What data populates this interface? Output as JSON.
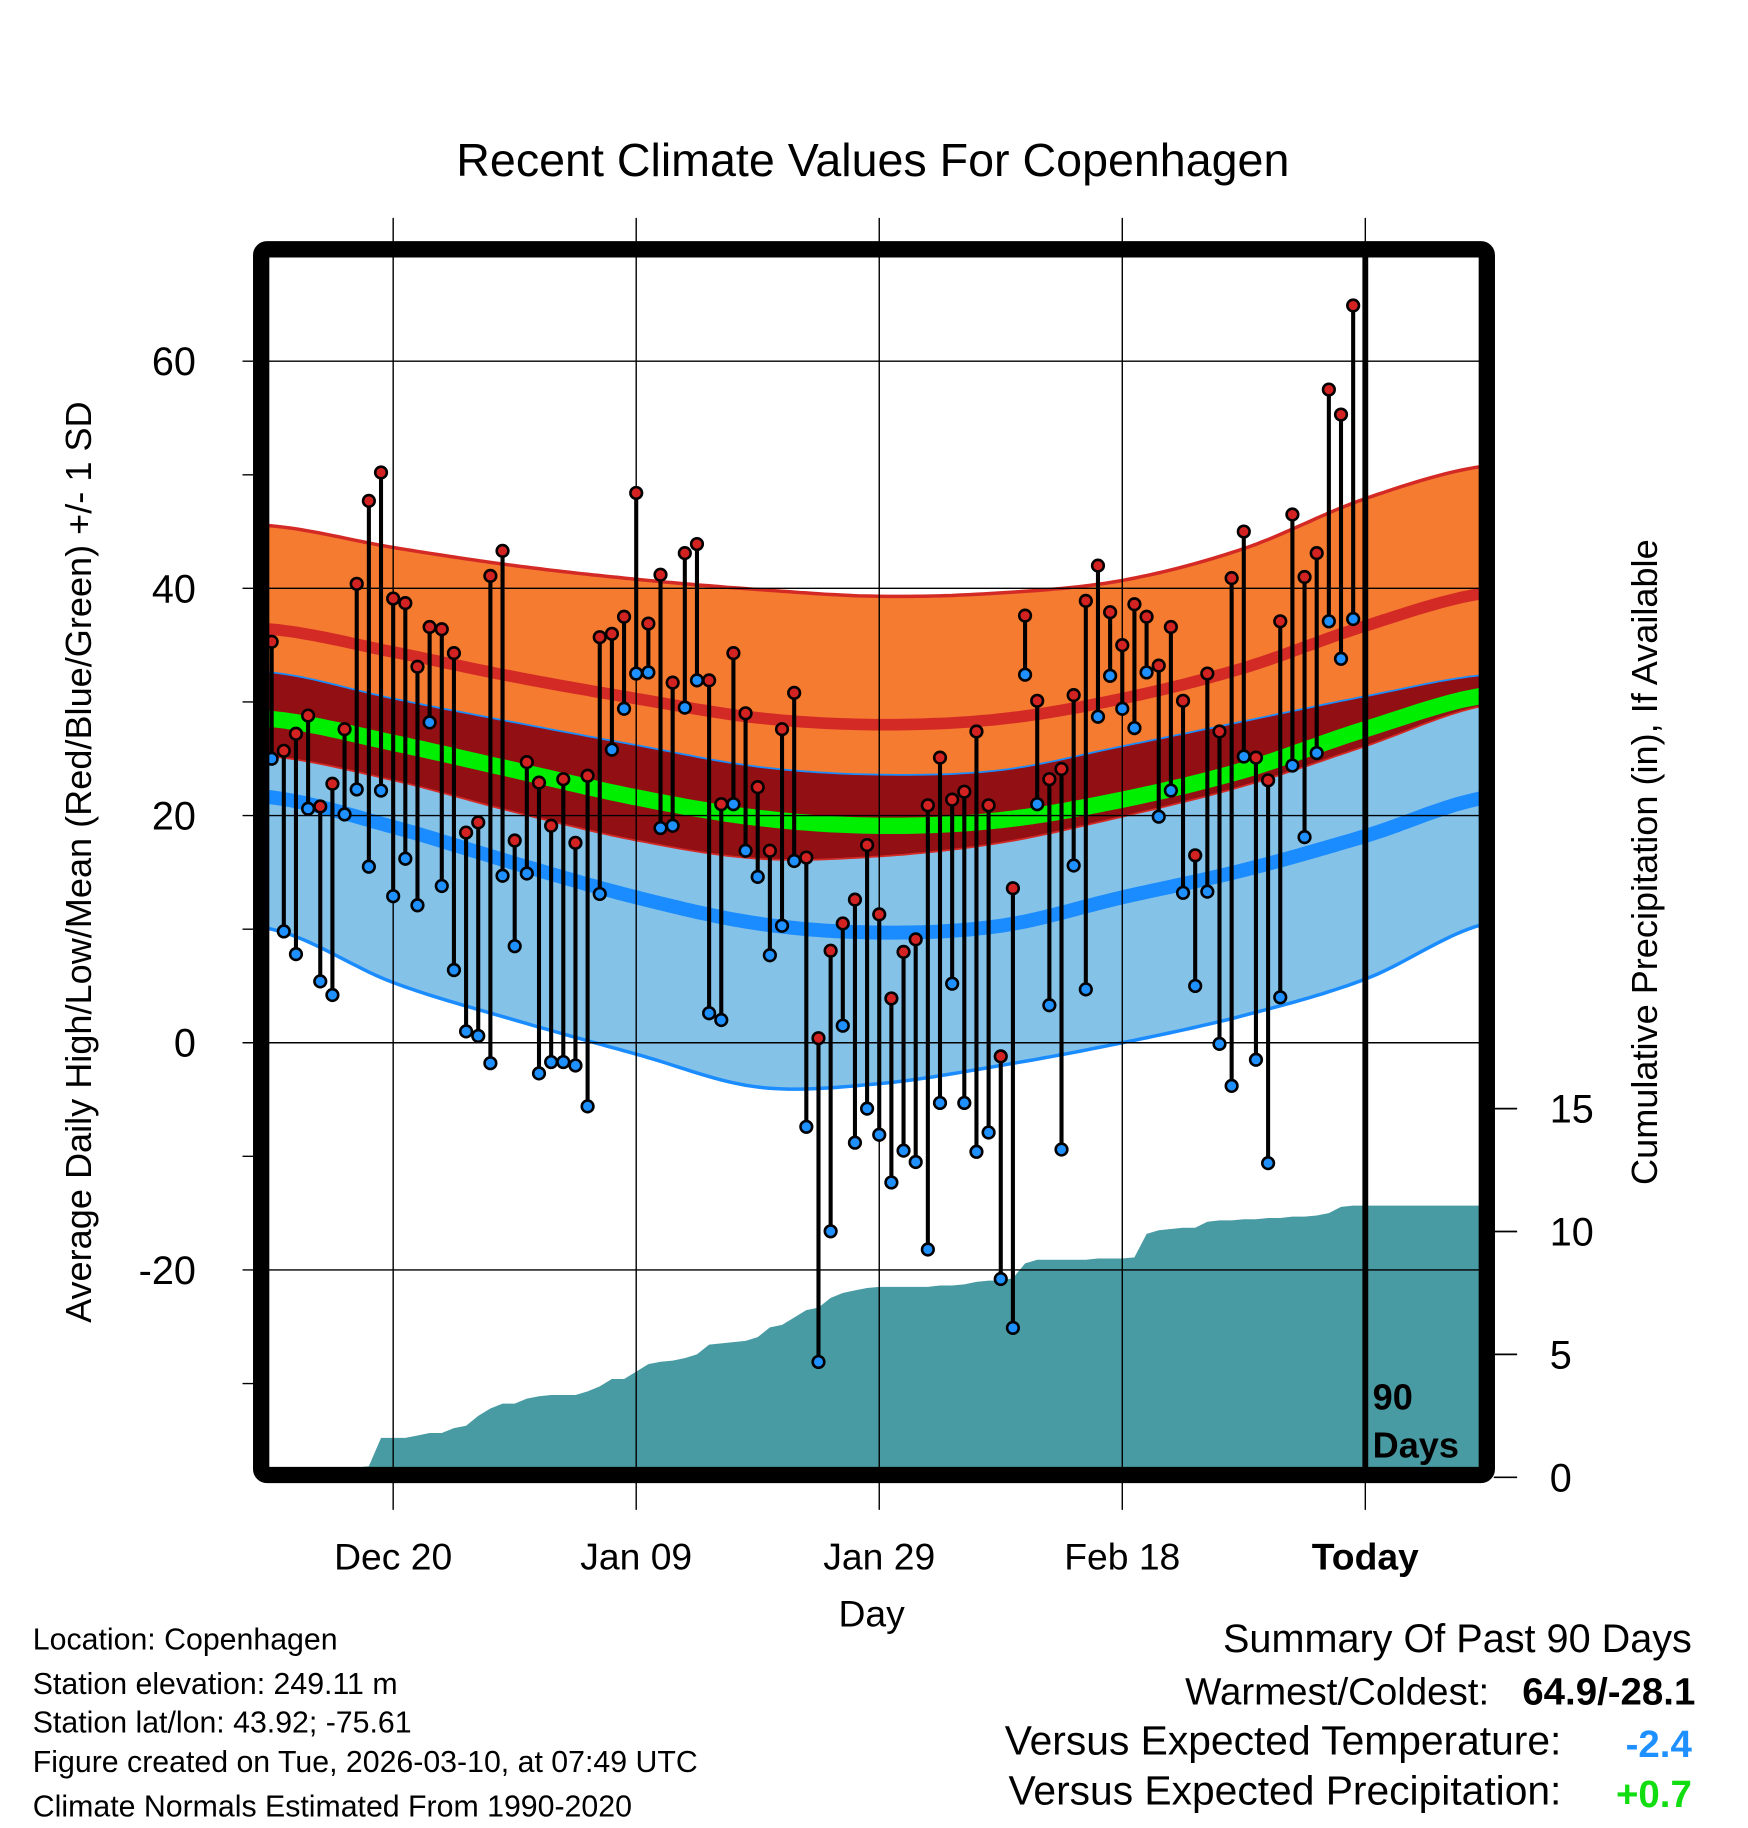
{
  "chart_data": {
    "type": "line",
    "title": "Recent Climate Values For Copenhagen",
    "xlabel": "Day",
    "ylabel": "Average Daily High/Low/Mean (Red/Blue/Green) +/- 1 SD",
    "ylabel_right": "Cumulative Precipitation (in), If Available",
    "ylim": [
      -37.6,
      69.2
    ],
    "yticks": [
      60,
      40,
      20,
      0,
      -20
    ],
    "yticks_right": [
      0,
      5,
      10,
      15
    ],
    "xlim_days": [
      -0.3,
      99.4
    ],
    "xticks": [
      {
        "day": 10,
        "label": "Dec 20"
      },
      {
        "day": 30,
        "label": "Jan 09"
      },
      {
        "day": 50,
        "label": "Jan 29"
      },
      {
        "day": 70,
        "label": "Feb 18"
      },
      {
        "day": 90,
        "label": "Today"
      }
    ],
    "today_label": [
      "90",
      "Days"
    ],
    "grid": true,
    "daily_high": [
      35.3,
      25.7,
      27.2,
      28.8,
      20.8,
      22.8,
      27.6,
      40.4,
      47.7,
      50.2,
      39.1,
      38.7,
      33.1,
      36.6,
      36.4,
      34.3,
      18.5,
      19.4,
      41.1,
      43.3,
      17.8,
      24.7,
      22.9,
      19.1,
      23.2,
      17.6,
      23.5,
      35.7,
      36.0,
      37.5,
      48.4,
      36.9,
      41.2,
      31.7,
      43.1,
      43.9,
      31.9,
      21.0,
      34.3,
      29.0,
      22.5,
      16.9,
      27.6,
      30.8,
      16.3,
      0.4,
      8.1,
      10.5,
      12.6,
      17.4,
      11.3,
      3.9,
      8.0,
      9.1,
      20.9,
      25.1,
      21.4,
      22.1,
      27.4,
      20.9,
      -1.2,
      13.6,
      37.6,
      30.1,
      23.2,
      24.1,
      30.6,
      38.9,
      42.0,
      37.9,
      35.0,
      38.6,
      37.5,
      33.2,
      36.6,
      30.1,
      16.5,
      32.5,
      27.4,
      40.9,
      45.0,
      25.1,
      23.1,
      37.1,
      46.5,
      41.0,
      43.1,
      57.5,
      55.3,
      64.9
    ],
    "daily_low": [
      25.0,
      9.8,
      7.8,
      20.6,
      5.4,
      4.2,
      20.1,
      22.3,
      15.5,
      22.2,
      12.9,
      16.2,
      12.1,
      28.2,
      13.8,
      6.4,
      1.0,
      0.6,
      -1.8,
      14.7,
      8.5,
      14.9,
      -2.7,
      -1.7,
      -1.7,
      -2.0,
      -5.6,
      13.1,
      25.8,
      29.4,
      32.5,
      32.6,
      18.9,
      19.1,
      29.5,
      31.9,
      2.6,
      2.0,
      21.0,
      16.9,
      14.6,
      7.7,
      10.3,
      16.0,
      -7.4,
      -28.1,
      -16.6,
      1.5,
      -8.8,
      -5.8,
      -8.1,
      -12.3,
      -9.5,
      -10.5,
      -18.2,
      -5.3,
      5.2,
      -5.3,
      -9.6,
      -7.9,
      -20.8,
      -25.1,
      32.4,
      21.0,
      3.3,
      -9.4,
      15.6,
      4.7,
      28.7,
      32.3,
      29.4,
      27.7,
      32.6,
      19.9,
      22.2,
      13.2,
      5.0,
      13.3,
      -0.1,
      -3.8,
      25.2,
      -1.5,
      -10.6,
      4.0,
      24.4,
      18.1,
      25.5,
      37.1,
      33.8,
      37.3
    ],
    "cumulative_precip_in": [
      0,
      0.05,
      0.1,
      0.15,
      0.2,
      0.35,
      0.4,
      0.4,
      0.45,
      1.6,
      1.6,
      1.6,
      1.7,
      1.8,
      1.8,
      2.0,
      2.1,
      2.5,
      2.8,
      3.0,
      3.0,
      3.2,
      3.3,
      3.35,
      3.35,
      3.35,
      3.5,
      3.7,
      4.0,
      4.0,
      4.3,
      4.6,
      4.7,
      4.75,
      4.85,
      5.0,
      5.4,
      5.45,
      5.5,
      5.55,
      5.7,
      6.1,
      6.2,
      6.5,
      6.8,
      6.9,
      7.3,
      7.5,
      7.6,
      7.7,
      7.75,
      7.75,
      7.75,
      7.75,
      7.75,
      7.8,
      7.8,
      7.85,
      7.95,
      8.0,
      8.0,
      8.1,
      8.7,
      8.85,
      8.85,
      8.85,
      8.85,
      8.85,
      8.9,
      8.9,
      8.9,
      8.95,
      9.9,
      10.05,
      10.1,
      10.15,
      10.15,
      10.4,
      10.45,
      10.45,
      10.5,
      10.5,
      10.55,
      10.55,
      10.6,
      10.6,
      10.65,
      10.75,
      11.0,
      11.05
    ],
    "normals": {
      "sample_days": [
        0,
        10,
        20,
        30,
        40,
        50,
        60,
        70,
        80,
        90,
        100
      ],
      "high_plus_sd": [
        45.5,
        43.6,
        42.0,
        40.8,
        39.9,
        39.3,
        39.6,
        40.7,
        43.5,
        47.9,
        50.8
      ],
      "high_mean": [
        36.4,
        34.4,
        32.2,
        30.3,
        28.6,
        28.0,
        28.5,
        30.3,
        33.0,
        36.7,
        39.6
      ],
      "high_minus_sd": [
        32.6,
        30.3,
        28.2,
        26.2,
        24.3,
        23.6,
        24.0,
        26.1,
        28.3,
        30.5,
        32.4
      ],
      "mean": [
        28.5,
        26.4,
        24.0,
        21.6,
        19.8,
        19.1,
        19.6,
        21.4,
        24.0,
        27.6,
        30.6
      ],
      "low_plus_sd": [
        25.2,
        23.1,
        20.3,
        17.8,
        16.2,
        16.4,
        17.6,
        19.9,
        22.6,
        26.1,
        29.7
      ],
      "low_mean": [
        21.6,
        19.0,
        15.8,
        12.8,
        10.5,
        9.7,
        10.3,
        12.8,
        15.2,
        18.2,
        21.6
      ],
      "low_minus_sd": [
        10.0,
        5.3,
        2.0,
        -1.0,
        -3.9,
        -3.6,
        -2.0,
        0.0,
        2.4,
        5.6,
        10.5
      ]
    },
    "colors": {
      "orange": "#f47b2f",
      "red_line": "#d42a26",
      "dark_red": "#921013",
      "green": "#00ee00",
      "light_blue": "#84c2e8",
      "blue": "#1a8cff",
      "precip": "#489ba3",
      "high_marker": "#d22222",
      "low_marker": "#1e90ff"
    }
  },
  "footer": {
    "left": [
      "Location: Copenhagen",
      "Station elevation: 249.11 m",
      "Station lat/lon: 43.92; -75.61",
      "Figure created on Tue, 2026-03-10, at 07:49 UTC",
      "Climate Normals Estimated From 1990-2020"
    ],
    "summary_title": "Summary Of Past 90 Days",
    "warmest_label": "Warmest/Coldest:",
    "warmest_value": "64.9/-28.1",
    "temp_label": "Versus Expected Temperature:",
    "temp_value": "-2.4",
    "temp_color": "#1e90ff",
    "precip_label": "Versus Expected Precipitation:",
    "precip_value": "+0.7",
    "precip_color": "#11dd11"
  }
}
